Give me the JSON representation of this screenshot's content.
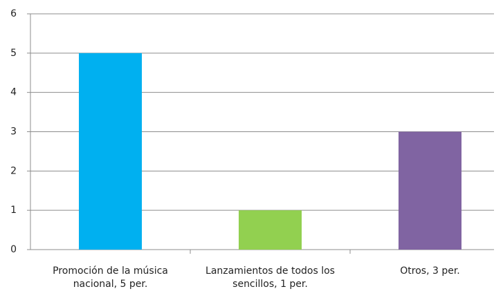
{
  "chart_data": {
    "type": "bar",
    "categories": [
      "Promoción de la música nacional, 5 per.",
      "Lanzamientos de todos los sencillos, 1 per.",
      "Otros, 3 per."
    ],
    "values": [
      5,
      1,
      3
    ],
    "colors": [
      "#00b0f0",
      "#92d050",
      "#8064a2"
    ],
    "ylim": [
      0,
      6
    ],
    "yticks": [
      0,
      1,
      2,
      3,
      4,
      5,
      6
    ],
    "grid": true
  }
}
